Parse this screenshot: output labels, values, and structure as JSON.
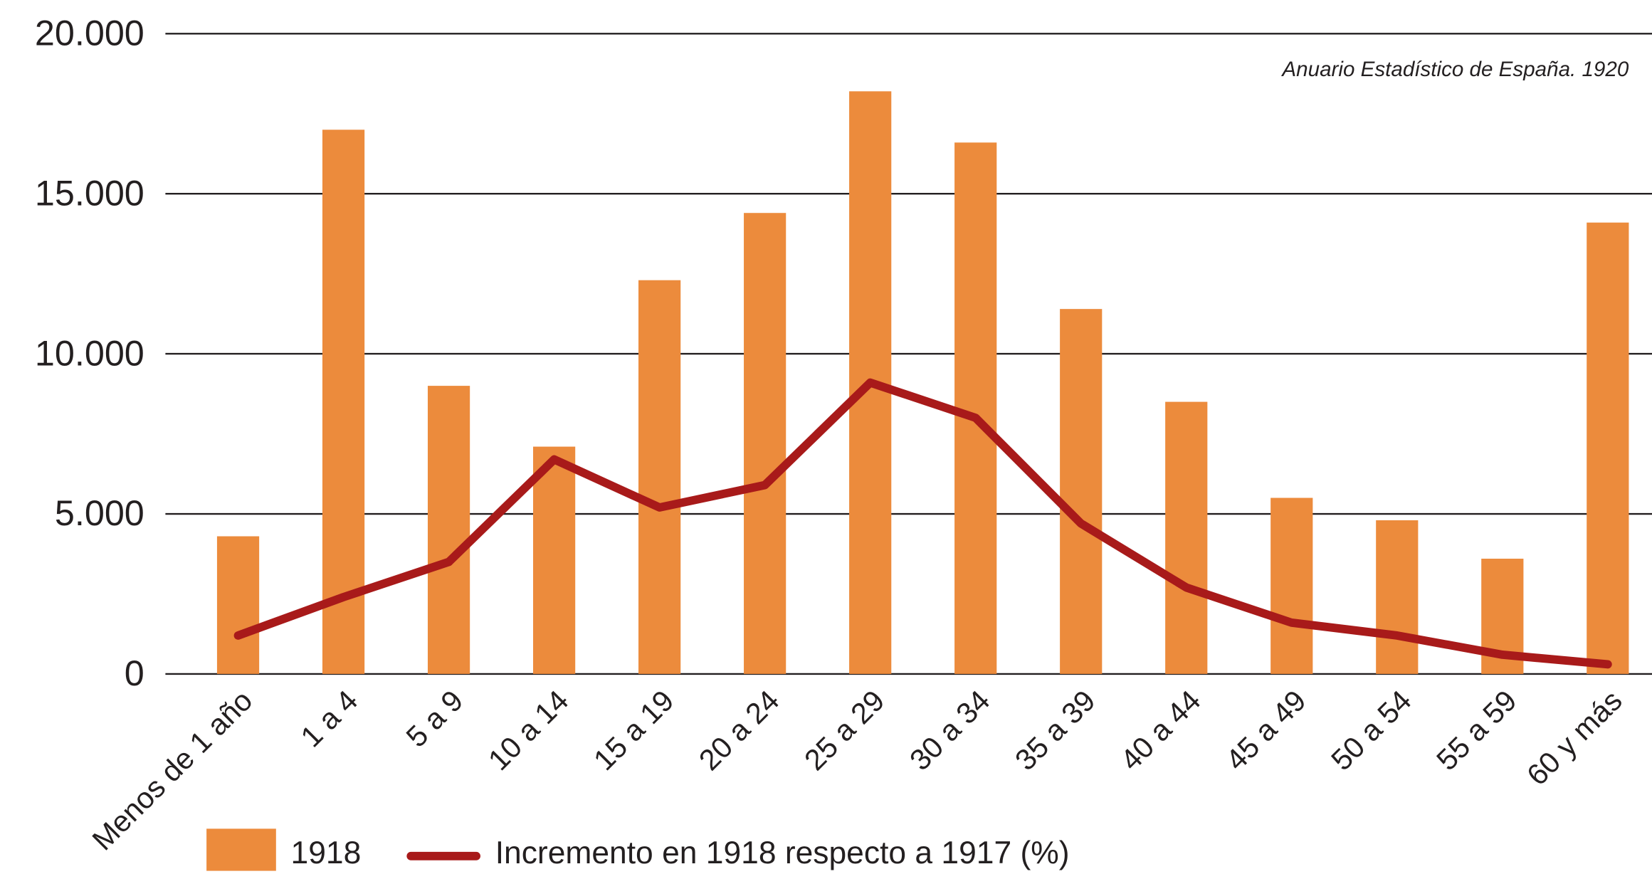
{
  "chart_data": {
    "type": "bar_line",
    "note": "Anuario Estadístico de España. 1920",
    "categories": [
      "Menos de 1 año",
      "1 a 4",
      "5 a 9",
      "10 a 14",
      "15 a 19",
      "20 a 24",
      "25 a 29",
      "30 a 34",
      "35 a 39",
      "40 a 44",
      "45 a 49",
      "50 a 54",
      "55 a 59",
      "60 y más"
    ],
    "series": [
      {
        "name": "1918",
        "type": "bar",
        "color": "#ec8b3c",
        "values": [
          4300,
          17000,
          9000,
          7100,
          12300,
          14400,
          18200,
          16600,
          11400,
          8500,
          5500,
          4800,
          3600,
          14100
        ]
      },
      {
        "name": "Incremento en 1918 respecto a 1917 (%)",
        "type": "line",
        "color": "#a81a1a",
        "values": [
          1200,
          2400,
          3500,
          6700,
          5200,
          5900,
          9100,
          8000,
          4700,
          2700,
          1600,
          1200,
          600,
          300
        ]
      }
    ],
    "ylim": [
      0,
      20000
    ],
    "yticks": [
      0,
      {
        "value": 5000,
        "label": "5.000"
      },
      {
        "value": 10000,
        "label": "10.000"
      },
      {
        "value": 15000,
        "label": "15.000"
      },
      {
        "value": 20000,
        "label": "20.000"
      }
    ],
    "grid": true
  }
}
